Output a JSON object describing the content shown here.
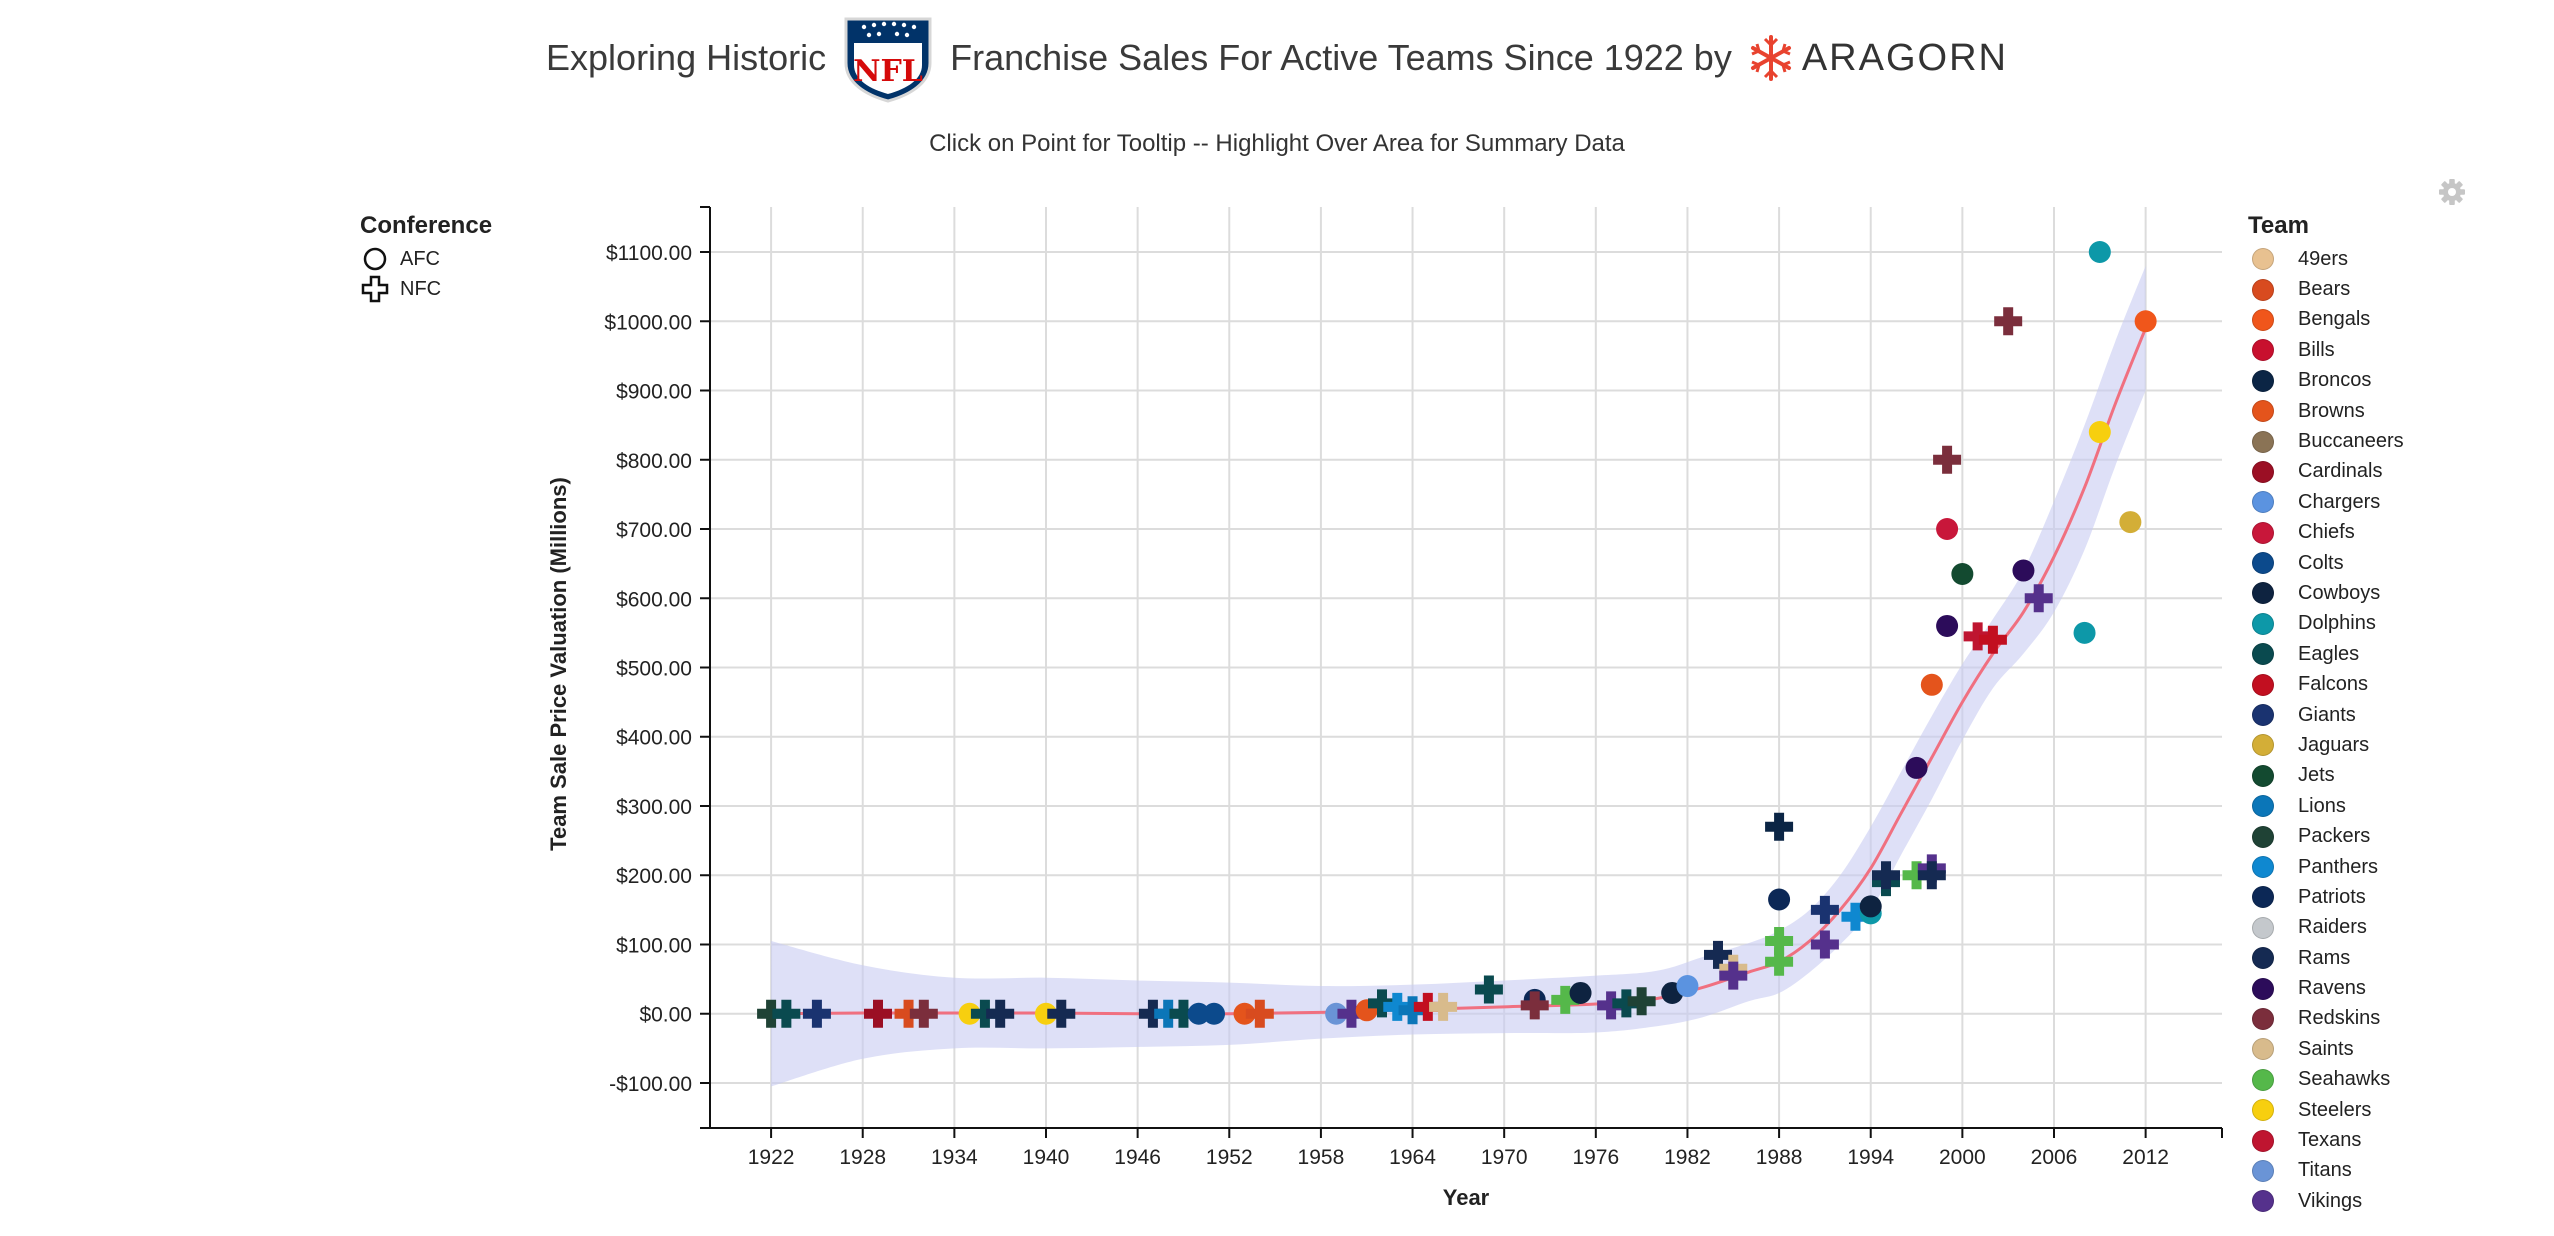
{
  "header": {
    "title_left": "Exploring Historic",
    "logo_text": "NFL",
    "title_right": "Franchise Sales For Active Teams Since 1922 by",
    "brand": "ARAGORN",
    "subtitle": "Click on Point for Tooltip -- Highlight Over Area for Summary Data"
  },
  "icons": {
    "settings": "gear-icon",
    "nfl": "nfl-shield-logo",
    "brand": "aragorn-star-logo"
  },
  "conference_legend": {
    "title": "Conference",
    "items": [
      {
        "label": "AFC",
        "shape": "circle"
      },
      {
        "label": "NFC",
        "shape": "cross"
      }
    ]
  },
  "team_legend": {
    "title": "Team",
    "items": [
      {
        "label": "49ers",
        "color": "#e8c190"
      },
      {
        "label": "Bears",
        "color": "#d84b1f"
      },
      {
        "label": "Bengals",
        "color": "#f0561b"
      },
      {
        "label": "Bills",
        "color": "#c8102e"
      },
      {
        "label": "Broncos",
        "color": "#0b2545"
      },
      {
        "label": "Browns",
        "color": "#e4541c"
      },
      {
        "label": "Buccaneers",
        "color": "#8a7355"
      },
      {
        "label": "Cardinals",
        "color": "#9b0f24"
      },
      {
        "label": "Chargers",
        "color": "#5b93e0"
      },
      {
        "label": "Chiefs",
        "color": "#c8173a"
      },
      {
        "label": "Colts",
        "color": "#0c4a8c"
      },
      {
        "label": "Cowboys",
        "color": "#0e2340"
      },
      {
        "label": "Dolphins",
        "color": "#0d98a8"
      },
      {
        "label": "Eagles",
        "color": "#0a4a4f"
      },
      {
        "label": "Falcons",
        "color": "#c20f20"
      },
      {
        "label": "Giants",
        "color": "#1a3370"
      },
      {
        "label": "Jaguars",
        "color": "#d3ae37"
      },
      {
        "label": "Jets",
        "color": "#134a30"
      },
      {
        "label": "Lions",
        "color": "#0b76b8"
      },
      {
        "label": "Packers",
        "color": "#1f4235"
      },
      {
        "label": "Panthers",
        "color": "#0f88d0"
      },
      {
        "label": "Patriots",
        "color": "#0c2856"
      },
      {
        "label": "Raiders",
        "color": "#c4c8cc"
      },
      {
        "label": "Rams",
        "color": "#152a52"
      },
      {
        "label": "Ravens",
        "color": "#2c0c5a"
      },
      {
        "label": "Redskins",
        "color": "#7b2e3c"
      },
      {
        "label": "Saints",
        "color": "#d8bb8c"
      },
      {
        "label": "Seahawks",
        "color": "#55b84a"
      },
      {
        "label": "Steelers",
        "color": "#f7cf0f"
      },
      {
        "label": "Texans",
        "color": "#bf1530"
      },
      {
        "label": "Titans",
        "color": "#6a94d6"
      },
      {
        "label": "Vikings",
        "color": "#55318c"
      }
    ]
  },
  "chart_data": {
    "type": "scatter",
    "xlabel": "Year",
    "ylabel": "Team Sale Price Valuation (Millions)",
    "xlim": [
      1918,
      2017
    ],
    "ylim": [
      -165,
      1165
    ],
    "x_ticks": [
      1922,
      1928,
      1934,
      1940,
      1946,
      1952,
      1958,
      1964,
      1970,
      1976,
      1982,
      1988,
      1994,
      2000,
      2006,
      2012
    ],
    "y_ticks": [
      -100,
      0,
      100,
      200,
      300,
      400,
      500,
      600,
      700,
      800,
      900,
      1000,
      1100
    ],
    "y_tick_labels": [
      "-$100.00",
      "$0.00",
      "$100.00",
      "$200.00",
      "$300.00",
      "$400.00",
      "$500.00",
      "$600.00",
      "$700.00",
      "$800.00",
      "$900.00",
      "$1000.00",
      "$1100.00"
    ],
    "grid": true,
    "legend_position": "right",
    "trend": {
      "color": "#f07080",
      "band_color": "#c8ccf2",
      "x": [
        1922,
        1928,
        1934,
        1940,
        1946,
        1952,
        1958,
        1964,
        1970,
        1976,
        1980,
        1983,
        1986,
        1988,
        1990,
        1992,
        1994,
        1996,
        1998,
        2000,
        2002,
        2004,
        2006,
        2008,
        2010,
        2012
      ],
      "y": [
        0,
        1,
        1,
        1,
        0,
        0,
        2,
        6,
        10,
        14,
        22,
        38,
        60,
        75,
        105,
        150,
        210,
        290,
        370,
        450,
        520,
        580,
        660,
        760,
        880,
        990
      ],
      "upper": [
        105,
        70,
        52,
        52,
        48,
        45,
        40,
        42,
        48,
        55,
        62,
        82,
        102,
        120,
        150,
        200,
        270,
        350,
        430,
        505,
        570,
        640,
        740,
        850,
        970,
        1080
      ],
      "lower": [
        -105,
        -65,
        -50,
        -50,
        -48,
        -45,
        -36,
        -30,
        -28,
        -27,
        -18,
        -5,
        18,
        30,
        60,
        100,
        150,
        230,
        310,
        395,
        470,
        520,
        580,
        670,
        790,
        900
      ]
    },
    "points": [
      {
        "year": 1922,
        "value": 0,
        "team": "Packers",
        "shape": "cross"
      },
      {
        "year": 1923,
        "value": 0,
        "team": "Eagles",
        "shape": "cross"
      },
      {
        "year": 1925,
        "value": 0,
        "team": "Giants",
        "shape": "cross"
      },
      {
        "year": 1929,
        "value": 0,
        "team": "Cardinals",
        "shape": "cross"
      },
      {
        "year": 1931,
        "value": 0,
        "team": "Bears",
        "shape": "cross"
      },
      {
        "year": 1932,
        "value": 0,
        "team": "Redskins",
        "shape": "cross"
      },
      {
        "year": 1935,
        "value": 0,
        "team": "Steelers",
        "shape": "circle"
      },
      {
        "year": 1936,
        "value": 0,
        "team": "Eagles",
        "shape": "cross"
      },
      {
        "year": 1937,
        "value": 0,
        "team": "Rams",
        "shape": "cross"
      },
      {
        "year": 1940,
        "value": 0,
        "team": "Steelers",
        "shape": "circle"
      },
      {
        "year": 1941,
        "value": 0,
        "team": "Rams",
        "shape": "cross"
      },
      {
        "year": 1947,
        "value": 0,
        "team": "Rams",
        "shape": "cross"
      },
      {
        "year": 1948,
        "value": 0,
        "team": "Lions",
        "shape": "cross"
      },
      {
        "year": 1949,
        "value": 0,
        "team": "Eagles",
        "shape": "cross"
      },
      {
        "year": 1950,
        "value": 0,
        "team": "Colts",
        "shape": "circle"
      },
      {
        "year": 1951,
        "value": 0,
        "team": "Colts",
        "shape": "circle"
      },
      {
        "year": 1953,
        "value": 0,
        "team": "Browns",
        "shape": "circle"
      },
      {
        "year": 1954,
        "value": 0,
        "team": "Bears",
        "shape": "cross"
      },
      {
        "year": 1959,
        "value": 0,
        "team": "Titans",
        "shape": "circle"
      },
      {
        "year": 1960,
        "value": 0,
        "team": "Vikings",
        "shape": "cross"
      },
      {
        "year": 1961,
        "value": 5,
        "team": "Browns",
        "shape": "circle"
      },
      {
        "year": 1962,
        "value": 15,
        "team": "Eagles",
        "shape": "cross"
      },
      {
        "year": 1963,
        "value": 10,
        "team": "Panthers",
        "shape": "cross"
      },
      {
        "year": 1964,
        "value": 5,
        "team": "Lions",
        "shape": "cross"
      },
      {
        "year": 1965,
        "value": 10,
        "team": "Falcons",
        "shape": "cross"
      },
      {
        "year": 1966,
        "value": 10,
        "team": "Saints",
        "shape": "cross"
      },
      {
        "year": 1969,
        "value": 35,
        "team": "Eagles",
        "shape": "cross"
      },
      {
        "year": 1972,
        "value": 20,
        "team": "Patriots",
        "shape": "circle"
      },
      {
        "year": 1972,
        "value": 12,
        "team": "Redskins",
        "shape": "cross"
      },
      {
        "year": 1974,
        "value": 20,
        "team": "Seahawks",
        "shape": "cross"
      },
      {
        "year": 1975,
        "value": 30,
        "team": "Cowboys",
        "shape": "circle"
      },
      {
        "year": 1977,
        "value": 12,
        "team": "Vikings",
        "shape": "cross"
      },
      {
        "year": 1978,
        "value": 15,
        "team": "Eagles",
        "shape": "cross"
      },
      {
        "year": 1979,
        "value": 18,
        "team": "Packers",
        "shape": "cross"
      },
      {
        "year": 1981,
        "value": 30,
        "team": "Cowboys",
        "shape": "circle"
      },
      {
        "year": 1982,
        "value": 40,
        "team": "Chargers",
        "shape": "circle"
      },
      {
        "year": 1984,
        "value": 85,
        "team": "Rams",
        "shape": "cross"
      },
      {
        "year": 1985,
        "value": 65,
        "team": "Saints",
        "shape": "cross"
      },
      {
        "year": 1985,
        "value": 55,
        "team": "Vikings",
        "shape": "cross"
      },
      {
        "year": 1988,
        "value": 270,
        "team": "Broncos",
        "shape": "cross"
      },
      {
        "year": 1988,
        "value": 165,
        "team": "Patriots",
        "shape": "circle"
      },
      {
        "year": 1988,
        "value": 105,
        "team": "Seahawks",
        "shape": "cross"
      },
      {
        "year": 1988,
        "value": 75,
        "team": "Seahawks",
        "shape": "cross"
      },
      {
        "year": 1991,
        "value": 150,
        "team": "Giants",
        "shape": "cross"
      },
      {
        "year": 1991,
        "value": 100,
        "team": "Vikings",
        "shape": "cross"
      },
      {
        "year": 1993,
        "value": 140,
        "team": "Panthers",
        "shape": "cross"
      },
      {
        "year": 1994,
        "value": 145,
        "team": "Dolphins",
        "shape": "circle"
      },
      {
        "year": 1994,
        "value": 155,
        "team": "Cowboys",
        "shape": "circle"
      },
      {
        "year": 1995,
        "value": 190,
        "team": "Eagles",
        "shape": "cross"
      },
      {
        "year": 1995,
        "value": 200,
        "team": "Rams",
        "shape": "cross"
      },
      {
        "year": 1997,
        "value": 355,
        "team": "Ravens",
        "shape": "circle"
      },
      {
        "year": 1997,
        "value": 200,
        "team": "Seahawks",
        "shape": "cross"
      },
      {
        "year": 1998,
        "value": 475,
        "team": "Browns",
        "shape": "circle"
      },
      {
        "year": 1998,
        "value": 210,
        "team": "Vikings",
        "shape": "cross"
      },
      {
        "year": 1998,
        "value": 200,
        "team": "Rams",
        "shape": "cross"
      },
      {
        "year": 1999,
        "value": 800,
        "team": "Redskins",
        "shape": "cross"
      },
      {
        "year": 1999,
        "value": 700,
        "team": "Chiefs",
        "shape": "circle"
      },
      {
        "year": 1999,
        "value": 560,
        "team": "Ravens",
        "shape": "circle"
      },
      {
        "year": 2000,
        "value": 635,
        "team": "Jets",
        "shape": "circle"
      },
      {
        "year": 2001,
        "value": 545,
        "team": "Texans",
        "shape": "cross"
      },
      {
        "year": 2002,
        "value": 540,
        "team": "Falcons",
        "shape": "cross"
      },
      {
        "year": 2003,
        "value": 1000,
        "team": "Redskins",
        "shape": "cross"
      },
      {
        "year": 2004,
        "value": 640,
        "team": "Ravens",
        "shape": "circle"
      },
      {
        "year": 2005,
        "value": 600,
        "team": "Vikings",
        "shape": "cross"
      },
      {
        "year": 2008,
        "value": 550,
        "team": "Dolphins",
        "shape": "circle"
      },
      {
        "year": 2009,
        "value": 1100,
        "team": "Dolphins",
        "shape": "circle"
      },
      {
        "year": 2009,
        "value": 840,
        "team": "Steelers",
        "shape": "circle"
      },
      {
        "year": 2011,
        "value": 710,
        "team": "Jaguars",
        "shape": "circle"
      },
      {
        "year": 2012,
        "value": 1000,
        "team": "Bengals",
        "shape": "circle"
      }
    ]
  }
}
